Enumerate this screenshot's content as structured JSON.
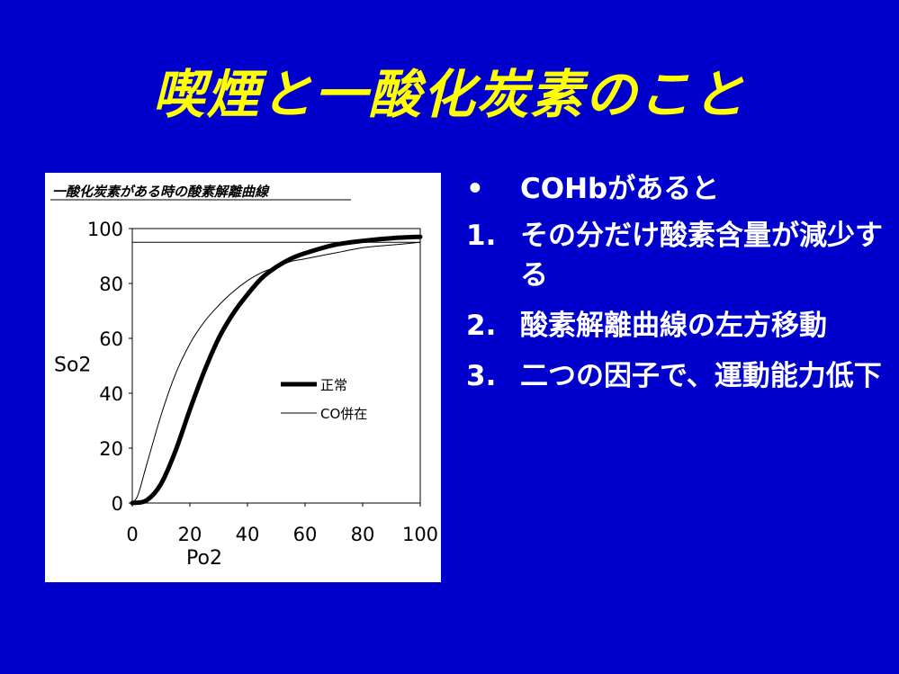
{
  "slide": {
    "title": "喫煙と一酸化炭素のこと",
    "colors": {
      "background": "#0000cc",
      "title": "#ffff00",
      "text": "#ffffff"
    }
  },
  "bullets": [
    {
      "marker": "•",
      "text": "COHbがあると"
    },
    {
      "marker": "1.",
      "text": "その分だけ酸素含量が減少する"
    },
    {
      "marker": "2.",
      "text": "酸素解離曲線の左方移動"
    },
    {
      "marker": "3.",
      "text": "二つの因子で、運動能力低下"
    }
  ],
  "chart_data": {
    "type": "line",
    "title": "一酸化炭素がある時の酸素解離曲線",
    "xlabel": "Po2",
    "ylabel": "So2",
    "xlim": [
      0,
      100
    ],
    "ylim": [
      0,
      100
    ],
    "xticks": [
      "0",
      "20",
      "40",
      "60",
      "80",
      "100"
    ],
    "yticks": [
      "0",
      "20",
      "40",
      "60",
      "80",
      "100"
    ],
    "grid": false,
    "legend_position": "center-right",
    "reference_line_y": 95,
    "series": [
      {
        "name": "正常",
        "style": "thick",
        "x": [
          0,
          5,
          10,
          15,
          20,
          25,
          30,
          35,
          40,
          45,
          50,
          55,
          60,
          70,
          80,
          90,
          100
        ],
        "y": [
          0,
          1,
          7,
          19,
          34,
          48,
          60,
          69,
          76,
          82,
          86,
          89,
          91,
          94,
          95.5,
          96.5,
          97
        ]
      },
      {
        "name": "CO併在",
        "style": "thin",
        "x": [
          0,
          2,
          5,
          10,
          15,
          20,
          25,
          30,
          35,
          40,
          45,
          50,
          55,
          60,
          70,
          80,
          90,
          100
        ],
        "y": [
          0,
          3,
          14,
          32,
          47,
          58,
          66,
          72,
          77,
          81,
          84,
          86,
          88,
          89,
          91,
          93,
          94,
          95
        ]
      }
    ]
  }
}
